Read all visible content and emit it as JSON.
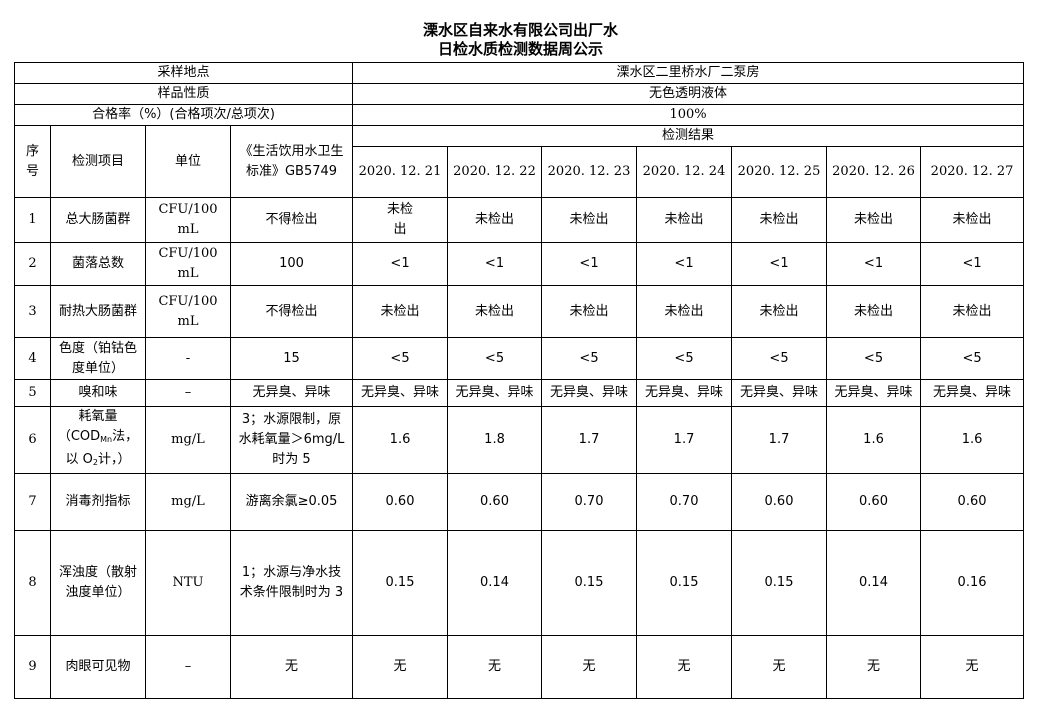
{
  "title_line1": "溧水区自来水有限公司出厂水",
  "title_line2": "日检水质检测数据周公示",
  "header": {
    "sampling_site_label": "采样地点",
    "sampling_site_value": "溧水区二里桥水厂二泵房",
    "sample_nature_label": "样品性质",
    "sample_nature_value": "无色透明液体",
    "pass_rate_label": "合格率（%）(合格项次/总项次)",
    "pass_rate_value": "100%",
    "col_no": "序号",
    "col_item": "检测项目",
    "col_unit": "单位",
    "col_standard": "《生活饮用水卫生标准》GB5749",
    "results_label": "检测结果",
    "dates": [
      "2020. 12. 21",
      "2020. 12. 22",
      "2020. 12. 23",
      "2020. 12. 24",
      "2020. 12. 25",
      "2020. 12. 26",
      "2020. 12. 27"
    ]
  },
  "rows": [
    {
      "no": "1",
      "item": [
        {
          "t": "总大肠菌群"
        }
      ],
      "unit": "CFU/100mL",
      "standard": "不得检出",
      "results": [
        "未检出",
        "未检出",
        "未检出",
        "未检出",
        "未检出",
        "未检出",
        "未检出"
      ]
    },
    {
      "no": "2",
      "item": [
        {
          "t": "菌落总数"
        }
      ],
      "unit": "CFU/100mL",
      "standard": "100",
      "results": [
        "<1",
        "<1",
        "<1",
        "<1",
        "<1",
        "<1",
        "<1"
      ]
    },
    {
      "no": "3",
      "item": [
        {
          "t": "耐热大肠菌群"
        }
      ],
      "unit": "CFU/100mL",
      "standard": "不得检出",
      "results": [
        "未检出",
        "未检出",
        "未检出",
        "未检出",
        "未检出",
        "未检出",
        "未检出"
      ]
    },
    {
      "no": "4",
      "item": [
        {
          "t": "色度（铂钴色度单位）"
        }
      ],
      "unit": "-",
      "standard": "15",
      "results": [
        "<5",
        "<5",
        "<5",
        "<5",
        "<5",
        "<5",
        "<5"
      ]
    },
    {
      "no": "5",
      "item": [
        {
          "t": "嗅和味"
        }
      ],
      "unit": "–",
      "standard": "无异臭、异味",
      "results": [
        "无异臭、异味",
        "无异臭、异味",
        "无异臭、异味",
        "无异臭、异味",
        "无异臭、异味",
        "无异臭、异味",
        "无异臭、异味"
      ]
    },
    {
      "no": "6",
      "item": [
        {
          "t": "耗氧量（COD"
        },
        {
          "sub": "Mn"
        },
        {
          "t": "法，以 O"
        },
        {
          "sub": "2"
        },
        {
          "t": "计，）"
        }
      ],
      "unit": "mg/L",
      "standard": "3；水源限制，原水耗氧量＞6mg/L时为 5",
      "results": [
        "1.6",
        "1.8",
        "1.7",
        "1.7",
        "1.7",
        "1.6",
        "1.6"
      ]
    },
    {
      "no": "7",
      "item": [
        {
          "t": "消毒剂指标"
        }
      ],
      "unit": "mg/L",
      "standard": "游离余氯≥0.05",
      "results": [
        "0.60",
        "0.60",
        "0.70",
        "0.70",
        "0.60",
        "0.60",
        "0.60"
      ]
    },
    {
      "no": "8",
      "item": [
        {
          "t": "浑浊度（散射浊度单位）"
        }
      ],
      "unit": "NTU",
      "standard": "1；水源与净水技术条件限制时为 3",
      "results": [
        "0.15",
        "0.14",
        "0.15",
        "0.15",
        "0.15",
        "0.14",
        "0.16"
      ]
    },
    {
      "no": "9",
      "item": [
        {
          "t": "肉眼可见物"
        }
      ],
      "unit": "–",
      "standard": "无",
      "results": [
        "无",
        "无",
        "无",
        "无",
        "无",
        "无",
        "无"
      ]
    }
  ]
}
